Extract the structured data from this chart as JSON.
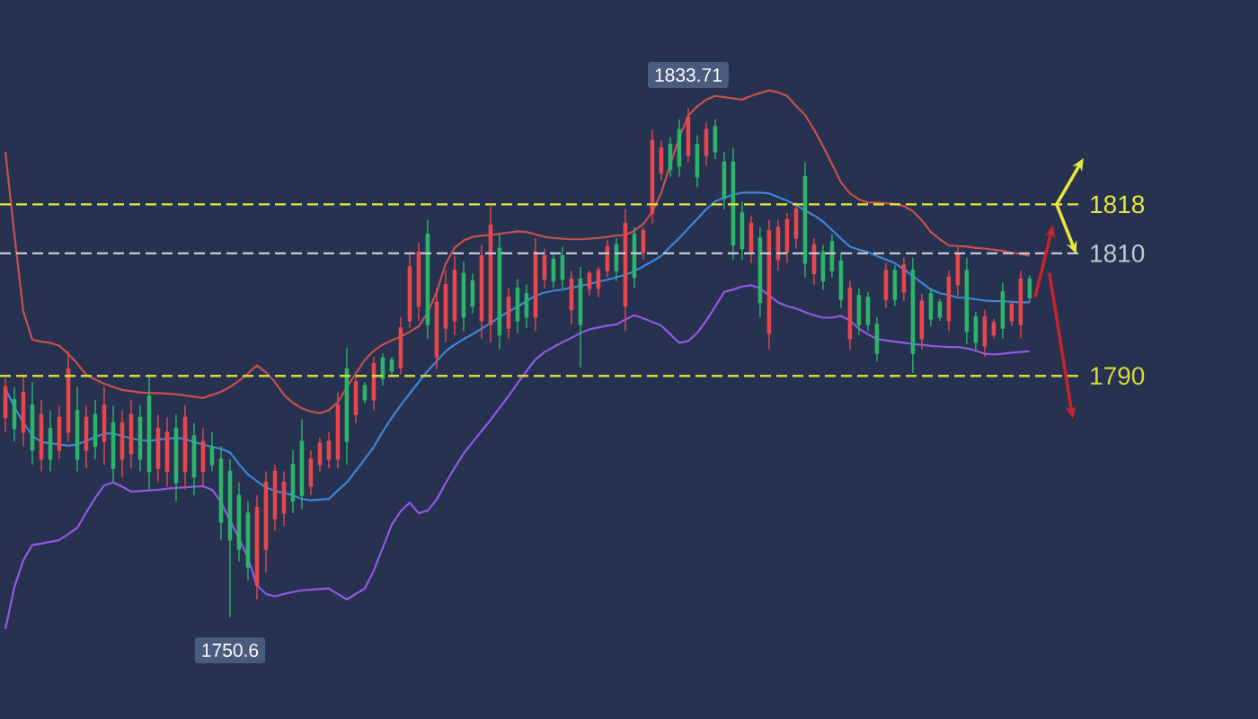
{
  "chart_data": {
    "type": "candlestick",
    "categories": [
      null,
      null,
      null,
      null,
      null,
      null,
      null,
      null,
      null,
      null,
      null,
      null,
      null,
      null,
      null,
      null,
      null,
      null,
      null,
      null,
      null,
      null,
      null,
      null,
      null,
      null,
      null,
      null,
      null,
      null,
      null,
      null,
      null,
      null,
      null,
      null,
      null,
      null,
      null,
      null,
      null,
      null,
      null,
      null,
      null,
      null,
      null,
      null,
      null,
      null,
      null,
      null,
      null,
      null,
      null,
      null,
      null,
      null,
      null,
      null,
      null,
      null,
      null,
      null,
      null,
      null,
      null,
      null,
      null,
      null,
      null,
      null,
      null,
      null,
      null,
      null,
      null,
      null,
      null,
      null,
      null,
      null,
      null,
      null,
      null,
      null,
      null,
      null,
      null,
      null,
      null,
      null,
      null,
      null,
      null,
      null,
      null,
      null,
      null,
      null,
      null,
      null,
      null,
      null,
      null,
      null,
      null,
      null,
      null,
      null,
      null,
      null,
      null,
      null,
      null
    ],
    "ohlc": [
      [
        1783.2,
        1789.6,
        1780.8,
        1788.2
      ],
      [
        1786.1,
        1788.2,
        1779.3,
        1781.4
      ],
      [
        1780.8,
        1790.2,
        1778.5,
        1787.3
      ],
      [
        1785.2,
        1789.0,
        1775.5,
        1777.9
      ],
      [
        1776.4,
        1786.1,
        1774.4,
        1783.7
      ],
      [
        1781.4,
        1784.3,
        1774.4,
        1776.4
      ],
      [
        1777.9,
        1785.2,
        1776.4,
        1783.2
      ],
      [
        1780.8,
        1794.0,
        1779.3,
        1791.1
      ],
      [
        1784.3,
        1788.2,
        1774.4,
        1776.4
      ],
      [
        1777.9,
        1785.2,
        1774.9,
        1783.2
      ],
      [
        1783.7,
        1786.1,
        1776.4,
        1778.5
      ],
      [
        1779.3,
        1788.2,
        1775.5,
        1785.2
      ],
      [
        1782.3,
        1785.2,
        1772.6,
        1774.9
      ],
      [
        1776.4,
        1784.3,
        1773.5,
        1782.3
      ],
      [
        1777.3,
        1786.1,
        1774.9,
        1783.7
      ],
      [
        1783.2,
        1785.2,
        1774.4,
        1776.4
      ],
      [
        1786.7,
        1790.2,
        1771.4,
        1774.4
      ],
      [
        1774.9,
        1783.7,
        1772.6,
        1781.4
      ],
      [
        1774.4,
        1783.2,
        1772.0,
        1780.8
      ],
      [
        1781.4,
        1783.7,
        1769.6,
        1772.6
      ],
      [
        1774.4,
        1785.2,
        1771.4,
        1783.2
      ],
      [
        1780.2,
        1782.3,
        1770.5,
        1773.5
      ],
      [
        1774.4,
        1781.4,
        1772.0,
        1779.3
      ],
      [
        1778.5,
        1780.8,
        1774.4,
        1775.5
      ],
      [
        1776.4,
        1778.5,
        1763.2,
        1766.1
      ],
      [
        1774.4,
        1776.4,
        1750.6,
        1763.2
      ],
      [
        1770.5,
        1772.6,
        1759.7,
        1761.7
      ],
      [
        1767.6,
        1769.6,
        1756.7,
        1758.8
      ],
      [
        1755.8,
        1770.5,
        1753.5,
        1768.5
      ],
      [
        1761.7,
        1774.4,
        1757.9,
        1772.6
      ],
      [
        1766.7,
        1775.5,
        1764.7,
        1774.4
      ],
      [
        1767.6,
        1774.4,
        1765.5,
        1772.6
      ],
      [
        1775.5,
        1777.9,
        1767.6,
        1769.6
      ],
      [
        1779.3,
        1782.9,
        1768.2,
        1770.5
      ],
      [
        1772.0,
        1777.9,
        1770.5,
        1776.4
      ],
      [
        1775.5,
        1779.9,
        1774.4,
        1779.0
      ],
      [
        1776.4,
        1780.8,
        1774.9,
        1779.3
      ],
      [
        1776.4,
        1787.3,
        1774.9,
        1785.2
      ],
      [
        1791.1,
        1794.6,
        1775.5,
        1779.3
      ],
      [
        1783.7,
        1790.2,
        1782.3,
        1789.0
      ],
      [
        1788.4,
        1789.0,
        1785.5,
        1786.1
      ],
      [
        1786.1,
        1793.1,
        1784.3,
        1792.0
      ],
      [
        1792.9,
        1793.7,
        1788.4,
        1789.6
      ],
      [
        1792.6,
        1793.1,
        1790.2,
        1790.8
      ],
      [
        1791.4,
        1799.6,
        1790.2,
        1797.8
      ],
      [
        1799.0,
        1810.2,
        1797.8,
        1807.8
      ],
      [
        1801.4,
        1811.7,
        1799.0,
        1810.2
      ],
      [
        1813.1,
        1815.5,
        1796.1,
        1798.4
      ],
      [
        1793.1,
        1804.3,
        1791.1,
        1802.0
      ],
      [
        1797.8,
        1807.2,
        1795.5,
        1804.9
      ],
      [
        1799.0,
        1809.6,
        1796.7,
        1807.2
      ],
      [
        1806.7,
        1808.7,
        1797.3,
        1799.6
      ],
      [
        1805.5,
        1806.7,
        1800.2,
        1801.4
      ],
      [
        1799.0,
        1811.4,
        1796.1,
        1809.6
      ],
      [
        1798.4,
        1817.8,
        1795.5,
        1814.6
      ],
      [
        1810.8,
        1813.1,
        1794.3,
        1796.7
      ],
      [
        1797.8,
        1804.3,
        1796.1,
        1802.8
      ],
      [
        1804.3,
        1805.8,
        1797.0,
        1799.0
      ],
      [
        1803.4,
        1804.9,
        1797.8,
        1799.6
      ],
      [
        1799.6,
        1812.5,
        1797.3,
        1810.2
      ],
      [
        1805.8,
        1810.8,
        1804.3,
        1809.6
      ],
      [
        1809.0,
        1810.2,
        1804.3,
        1805.5
      ],
      [
        1809.6,
        1811.1,
        1804.3,
        1805.8
      ],
      [
        1800.8,
        1807.2,
        1798.4,
        1805.8
      ],
      [
        1805.8,
        1807.8,
        1791.4,
        1798.4
      ],
      [
        1804.3,
        1807.2,
        1803.1,
        1806.7
      ],
      [
        1804.3,
        1807.8,
        1802.8,
        1807.2
      ],
      [
        1807.2,
        1812.2,
        1806.1,
        1811.1
      ],
      [
        1811.4,
        1812.5,
        1805.5,
        1807.2
      ],
      [
        1801.4,
        1817.2,
        1797.3,
        1814.9
      ],
      [
        1813.1,
        1814.3,
        1804.3,
        1806.1
      ],
      [
        1810.2,
        1814.3,
        1809.0,
        1813.7
      ],
      [
        1816.6,
        1830.2,
        1814.9,
        1828.4
      ],
      [
        1823.1,
        1828.4,
        1821.9,
        1827.2
      ],
      [
        1827.8,
        1829.0,
        1822.5,
        1823.7
      ],
      [
        1830.2,
        1831.9,
        1822.5,
        1824.3
      ],
      [
        1826.0,
        1833.71,
        1824.9,
        1832.2
      ],
      [
        1827.8,
        1829.3,
        1820.8,
        1822.5
      ],
      [
        1826.0,
        1831.3,
        1824.3,
        1830.2
      ],
      [
        1830.7,
        1831.9,
        1825.4,
        1826.6
      ],
      [
        1824.9,
        1826.6,
        1817.2,
        1819.0
      ],
      [
        1824.9,
        1827.2,
        1809.0,
        1811.4
      ],
      [
        1816.6,
        1818.4,
        1809.0,
        1810.8
      ],
      [
        1810.2,
        1816.1,
        1808.4,
        1814.9
      ],
      [
        1812.5,
        1814.3,
        1799.6,
        1802.0
      ],
      [
        1797.0,
        1815.5,
        1794.3,
        1813.7
      ],
      [
        1809.0,
        1815.5,
        1807.2,
        1814.3
      ],
      [
        1810.2,
        1816.6,
        1808.4,
        1815.5
      ],
      [
        1812.5,
        1818.4,
        1810.8,
        1817.2
      ],
      [
        1822.5,
        1824.9,
        1806.1,
        1808.4
      ],
      [
        1806.7,
        1812.5,
        1804.9,
        1811.4
      ],
      [
        1810.2,
        1811.4,
        1804.0,
        1805.5
      ],
      [
        1811.9,
        1813.1,
        1806.1,
        1807.2
      ],
      [
        1808.7,
        1810.2,
        1801.1,
        1802.5
      ],
      [
        1796.1,
        1805.5,
        1794.3,
        1804.3
      ],
      [
        1803.1,
        1804.3,
        1796.7,
        1798.4
      ],
      [
        1802.8,
        1803.7,
        1797.3,
        1798.4
      ],
      [
        1798.4,
        1799.6,
        1792.3,
        1793.7
      ],
      [
        1802.5,
        1808.4,
        1801.1,
        1807.2
      ],
      [
        1807.2,
        1808.1,
        1801.4,
        1802.5
      ],
      [
        1803.7,
        1809.3,
        1802.2,
        1808.1
      ],
      [
        1807.2,
        1809.3,
        1790.5,
        1793.7
      ],
      [
        1796.1,
        1803.4,
        1794.3,
        1802.2
      ],
      [
        1803.4,
        1804.3,
        1798.1,
        1799.3
      ],
      [
        1802.0,
        1802.5,
        1799.0,
        1799.6
      ],
      [
        1799.0,
        1807.2,
        1797.3,
        1806.1
      ],
      [
        1804.9,
        1811.1,
        1803.1,
        1809.9
      ],
      [
        1807.2,
        1809.3,
        1795.2,
        1797.3
      ],
      [
        1799.6,
        1800.5,
        1794.3,
        1795.5
      ],
      [
        1794.9,
        1800.8,
        1793.1,
        1799.6
      ],
      [
        1796.7,
        1799.3,
        1796.1,
        1798.7
      ],
      [
        1803.7,
        1805.2,
        1796.1,
        1797.8
      ],
      [
        1799.0,
        1802.2,
        1798.1,
        1801.7
      ],
      [
        1798.4,
        1807.2,
        1796.1,
        1805.8
      ],
      [
        1805.8,
        1806.4,
        1802.0,
        1802.8
      ]
    ],
    "series": [
      {
        "type": "line",
        "color": "#c9504e",
        "values": [
          1826.6,
          1813.1,
          1800.5,
          1795.9,
          1795.6,
          1795.4,
          1794.9,
          1793.6,
          1792.0,
          1790.2,
          1789.4,
          1788.7,
          1788.2,
          1787.7,
          1787.5,
          1787.3,
          1787.2,
          1787.2,
          1787.1,
          1787.0,
          1786.8,
          1786.6,
          1786.4,
          1786.9,
          1787.4,
          1788.2,
          1789.2,
          1790.4,
          1791.7,
          1790.6,
          1789.0,
          1786.9,
          1785.6,
          1784.7,
          1784.2,
          1783.9,
          1784.4,
          1785.7,
          1788.1,
          1790.4,
          1792.6,
          1794.1,
          1795.1,
          1795.8,
          1796.4,
          1797.2,
          1798.1,
          1800.3,
          1803.7,
          1808.3,
          1810.9,
          1812.1,
          1812.7,
          1812.9,
          1813.0,
          1813.2,
          1813.4,
          1813.6,
          1813.5,
          1813.1,
          1812.7,
          1812.5,
          1812.4,
          1812.3,
          1812.3,
          1812.4,
          1812.5,
          1812.7,
          1812.9,
          1813.0,
          1813.7,
          1814.8,
          1816.8,
          1819.9,
          1824.5,
          1828.9,
          1832.5,
          1834.0,
          1835.1,
          1835.7,
          1835.5,
          1835.3,
          1835.1,
          1835.7,
          1836.2,
          1836.6,
          1836.3,
          1835.7,
          1834.1,
          1832.6,
          1830.2,
          1827.5,
          1824.6,
          1821.6,
          1819.8,
          1818.8,
          1818.3,
          1818.3,
          1818.2,
          1818.1,
          1817.7,
          1816.9,
          1815.4,
          1813.5,
          1812.3,
          1811.3,
          1811.2,
          1811.1,
          1810.9,
          1810.8,
          1810.6,
          1810.4,
          1810.1,
          1809.9,
          1809.6
        ]
      },
      {
        "type": "line",
        "color": "#3f86d8",
        "values": [
          1787.9,
          1784.9,
          1782.4,
          1780.2,
          1779.2,
          1779.0,
          1778.8,
          1778.6,
          1778.8,
          1779.4,
          1780.0,
          1780.6,
          1780.6,
          1780.2,
          1779.8,
          1779.5,
          1779.4,
          1779.6,
          1779.7,
          1779.9,
          1779.7,
          1779.2,
          1778.8,
          1778.4,
          1778.1,
          1777.5,
          1775.6,
          1773.9,
          1772.8,
          1771.8,
          1771.2,
          1770.9,
          1770.5,
          1769.9,
          1769.7,
          1769.8,
          1769.9,
          1771.3,
          1772.6,
          1774.5,
          1776.4,
          1778.4,
          1780.9,
          1783.2,
          1785.2,
          1787.1,
          1789.0,
          1790.8,
          1792.4,
          1794.0,
          1795.1,
          1796.0,
          1796.8,
          1797.7,
          1798.6,
          1799.6,
          1800.5,
          1801.3,
          1802.2,
          1803.1,
          1803.6,
          1803.9,
          1804.1,
          1804.4,
          1804.7,
          1805.0,
          1805.4,
          1805.7,
          1806.1,
          1806.5,
          1807.1,
          1807.9,
          1808.7,
          1809.6,
          1811.1,
          1812.5,
          1814.1,
          1815.6,
          1817.2,
          1818.5,
          1819.1,
          1819.6,
          1819.9,
          1819.9,
          1819.9,
          1819.8,
          1819.2,
          1818.6,
          1817.9,
          1817.0,
          1816.2,
          1815.2,
          1813.8,
          1812.4,
          1811.1,
          1810.6,
          1810.2,
          1809.6,
          1809.0,
          1808.4,
          1807.4,
          1806.3,
          1805.2,
          1804.1,
          1803.5,
          1803.2,
          1802.8,
          1802.7,
          1802.5,
          1802.3,
          1802.2,
          1802.2,
          1802.1,
          1802.0,
          1802.0
        ]
      },
      {
        "type": "line",
        "color": "#9457e8",
        "values": [
          1748.7,
          1755.5,
          1759.9,
          1762.4,
          1762.6,
          1762.9,
          1763.2,
          1764.2,
          1765.2,
          1767.7,
          1770.1,
          1772.1,
          1772.6,
          1771.9,
          1771.1,
          1771.2,
          1771.3,
          1771.4,
          1771.6,
          1771.7,
          1771.8,
          1771.9,
          1772.0,
          1771.4,
          1769.4,
          1766.4,
          1763.5,
          1760.3,
          1755.8,
          1754.4,
          1754.0,
          1754.4,
          1754.7,
          1755.0,
          1755.1,
          1755.2,
          1755.3,
          1754.4,
          1753.5,
          1754.4,
          1755.3,
          1758.2,
          1761.9,
          1765.7,
          1767.9,
          1769.3,
          1767.6,
          1768.0,
          1769.8,
          1772.5,
          1775.0,
          1777.3,
          1779.2,
          1781.0,
          1782.8,
          1784.8,
          1786.7,
          1788.8,
          1790.8,
          1792.7,
          1793.9,
          1794.7,
          1795.5,
          1796.2,
          1797.0,
          1797.6,
          1797.9,
          1798.2,
          1798.4,
          1799.2,
          1799.9,
          1799.4,
          1798.8,
          1798.2,
          1796.8,
          1795.4,
          1795.7,
          1797.0,
          1799.0,
          1801.3,
          1803.7,
          1804.1,
          1804.6,
          1804.8,
          1804.3,
          1803.1,
          1802.0,
          1801.4,
          1801.0,
          1800.4,
          1799.9,
          1799.5,
          1799.5,
          1799.8,
          1799.0,
          1797.7,
          1796.8,
          1796.0,
          1795.8,
          1795.6,
          1795.4,
          1795.2,
          1795.1,
          1794.9,
          1794.8,
          1794.7,
          1794.7,
          1794.5,
          1794.1,
          1793.6,
          1793.5,
          1793.6,
          1793.8,
          1793.9,
          1794.0
        ]
      }
    ],
    "ref_lines": [
      {
        "axis": "y",
        "value": 1818,
        "label": "1818",
        "color": "#e6e83a",
        "line_style": "dashed"
      },
      {
        "axis": "y",
        "value": 1810,
        "label": "1810",
        "color": "#c3c9d4",
        "line_style": "dashed"
      },
      {
        "axis": "y",
        "value": 1790,
        "label": "1790",
        "color": "#d6d83e",
        "line_style": "dashed"
      }
    ],
    "annotations": [
      {
        "text": "1833.71",
        "y": 1833.71
      },
      {
        "text": "1750.6",
        "y": 1750.6
      }
    ]
  }
}
